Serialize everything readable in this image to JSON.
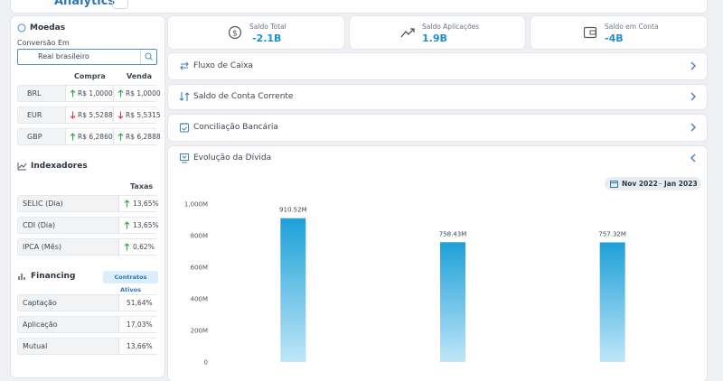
{
  "header": {
    "title": "Analytics"
  },
  "moedas": {
    "title": "Moedas",
    "conversion_label": "Conversão Em",
    "conversion_value": "Real brasileiro",
    "columns": [
      "Compra",
      "Venda"
    ],
    "rows": [
      {
        "currency": "BRL",
        "compra": {
          "value": "R$ 1,0000",
          "trend": "up"
        },
        "venda": {
          "value": "R$ 1,0000",
          "trend": "up"
        }
      },
      {
        "currency": "EUR",
        "compra": {
          "value": "R$ 5,5288",
          "trend": "down"
        },
        "venda": {
          "value": "R$ 5,5315",
          "trend": "down"
        }
      },
      {
        "currency": "GBP",
        "compra": {
          "value": "R$ 6,2860",
          "trend": "up"
        },
        "venda": {
          "value": "R$ 6,2888",
          "trend": "up"
        }
      }
    ]
  },
  "indexadores": {
    "title": "Indexadores",
    "column": "Taxas",
    "rows": [
      {
        "name": "SELIC (Dia)",
        "value": "13,65%",
        "trend": "up"
      },
      {
        "name": "CDI (Dia)",
        "value": "13,65%",
        "trend": "up"
      },
      {
        "name": "IPCA (Mês)",
        "value": "0,62%",
        "trend": "up"
      }
    ]
  },
  "financing": {
    "title": "Financing",
    "badge": "Contratos Ativos",
    "rows": [
      {
        "name": "Captação",
        "value": "51,64%"
      },
      {
        "name": "Aplicação",
        "value": "17,03%"
      },
      {
        "name": "Mutual",
        "value": "13,66%"
      }
    ]
  },
  "summary": [
    {
      "label": "Saldo Total",
      "value": "-2.1B"
    },
    {
      "label": "Saldo Aplicações",
      "value": "1.9B"
    },
    {
      "label": "Saldo em Conta",
      "value": "-4B"
    }
  ],
  "sections": [
    "Fluxo de Caixa",
    "Saldo de Conta Corrente",
    "Conciliação Bancária"
  ],
  "debt": {
    "title": "Evolução da Dívida",
    "date_range": [
      "Nov 2022",
      "Jan 2023"
    ],
    "chart_data": {
      "type": "bar",
      "categories": [
        null,
        null,
        null
      ],
      "values": [
        910520000,
        758430000,
        757320000
      ],
      "value_labels": [
        "910.52M",
        "758.43M",
        "757.32M"
      ],
      "color": "#1ea0d8",
      "ylim": [
        0,
        1000000000
      ],
      "yticks": [
        0,
        {
          "value": 200000000,
          "label": "200M"
        },
        {
          "value": 400000000,
          "label": "400M"
        },
        {
          "value": 600000000,
          "label": "600M"
        },
        {
          "value": 800000000,
          "label": "800M"
        },
        {
          "value": 1000000000,
          "label": "1,000M"
        }
      ],
      "grid": false
    }
  }
}
